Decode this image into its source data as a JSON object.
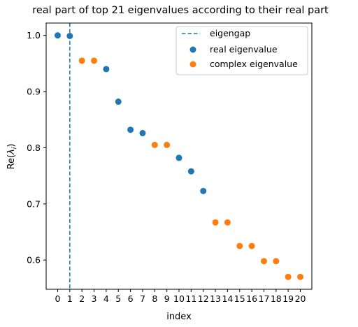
{
  "chart_data": {
    "type": "scatter",
    "title": "real part of top 21 eigenvalues according to their real part",
    "xlabel": "index",
    "ylabel_main": "Re(",
    "ylabel_sub": "i",
    "ylabel_close": ")",
    "ylabel_symbol": "λ",
    "xlim": [
      -0.95,
      20.95
    ],
    "ylim": [
      0.548,
      1.022
    ],
    "x_ticks": [
      0,
      1,
      2,
      3,
      4,
      5,
      6,
      7,
      8,
      9,
      10,
      11,
      12,
      13,
      14,
      15,
      16,
      17,
      18,
      19,
      20
    ],
    "x_tick_labels": [
      "0",
      "1",
      "2",
      "3",
      "4",
      "5",
      "6",
      "7",
      "8",
      "9",
      "10",
      "11",
      "12",
      "13",
      "14",
      "15",
      "16",
      "17",
      "18",
      "19",
      "20"
    ],
    "y_ticks": [
      0.6,
      0.7,
      0.8,
      0.9,
      1.0
    ],
    "y_tick_labels": [
      "0.6",
      "0.7",
      "0.8",
      "0.9",
      "1.0"
    ],
    "eigengap": {
      "name": "eigengap",
      "x": 1,
      "color": "#1f77b4"
    },
    "series": [
      {
        "name": "real eigenvalue",
        "color": "#1f77b4",
        "points": [
          {
            "x": 0,
            "y": 1.0
          },
          {
            "x": 1,
            "y": 0.999
          },
          {
            "x": 4,
            "y": 0.94
          },
          {
            "x": 5,
            "y": 0.882
          },
          {
            "x": 6,
            "y": 0.832
          },
          {
            "x": 7,
            "y": 0.826
          },
          {
            "x": 10,
            "y": 0.782
          },
          {
            "x": 11,
            "y": 0.758
          },
          {
            "x": 12,
            "y": 0.723
          }
        ]
      },
      {
        "name": "complex eigenvalue",
        "color": "#ff7f0e",
        "points": [
          {
            "x": 2,
            "y": 0.955
          },
          {
            "x": 3,
            "y": 0.955
          },
          {
            "x": 8,
            "y": 0.805
          },
          {
            "x": 9,
            "y": 0.805
          },
          {
            "x": 13,
            "y": 0.667
          },
          {
            "x": 14,
            "y": 0.667
          },
          {
            "x": 15,
            "y": 0.625
          },
          {
            "x": 16,
            "y": 0.625
          },
          {
            "x": 17,
            "y": 0.598
          },
          {
            "x": 18,
            "y": 0.598
          },
          {
            "x": 19,
            "y": 0.57
          },
          {
            "x": 20,
            "y": 0.57
          }
        ]
      }
    ],
    "legend_position": "top-right"
  }
}
